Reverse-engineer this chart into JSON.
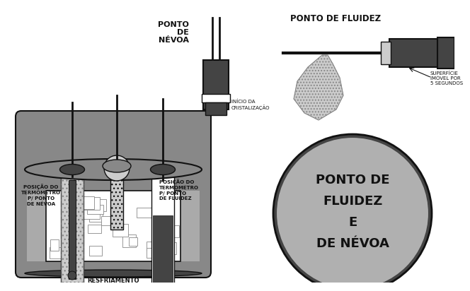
{
  "background_color": "#ffffff",
  "label_nevoa": "PONTO\nDE\nNÉVOA",
  "label_fluidez": "PONTO DE FLUIDEZ",
  "label_inicio": "INÍCIO DA\nCRISTALIZAÇÃO",
  "label_superficie": "SUPERFÍCIE\nIMÓVEL POR\n5 SEGUNDOS",
  "label_pos_nevoa": "POSIÇÃO DO\nTERMÔMETRO\nP/ PONTO\nDE NÉVOA",
  "label_pos_fluidez": "POSIÇÃO DO\nTERMÔMETRO\nP/ PONTO\nDE FLUIDEZ",
  "label_resfriamento": "RESFRIAMENTO",
  "oval_text_line1": "PONTO DE",
  "oval_text_line2": "FLUIDEZ",
  "oval_text_line3": "E",
  "oval_text_line4": "DE NÉVOA",
  "oval_color": "#b0b0b0",
  "oval_edge_color": "#555555",
  "fg_color": "#111111",
  "gray_dark": "#444444",
  "gray_mid": "#888888",
  "gray_light": "#aaaaaa",
  "gray_lighter": "#cccccc",
  "gray_bg": "#999999"
}
